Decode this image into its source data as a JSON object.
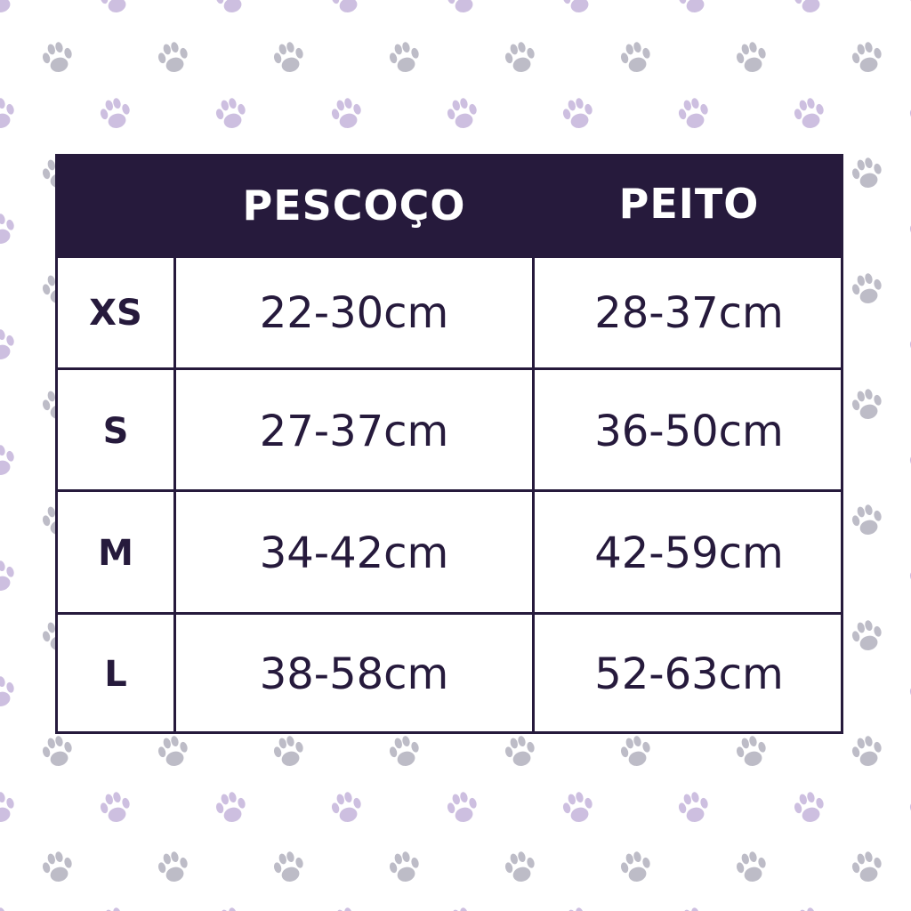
{
  "colors": {
    "dark": "#261a3c",
    "paw_gray": "#bdbcc7",
    "paw_purple": "#cdbfe0"
  },
  "background_icon": "paw-print-icon",
  "table": {
    "headers": [
      "",
      "PESCOÇO",
      "PEITO"
    ],
    "rows": [
      {
        "size": "XS",
        "neck": "22-30cm",
        "chest": "28-37cm"
      },
      {
        "size": "S",
        "neck": "27-37cm",
        "chest": "36-50cm"
      },
      {
        "size": "M",
        "neck": "34-42cm",
        "chest": "42-59cm"
      },
      {
        "size": "L",
        "neck": "38-58cm",
        "chest": "52-63cm"
      }
    ]
  }
}
